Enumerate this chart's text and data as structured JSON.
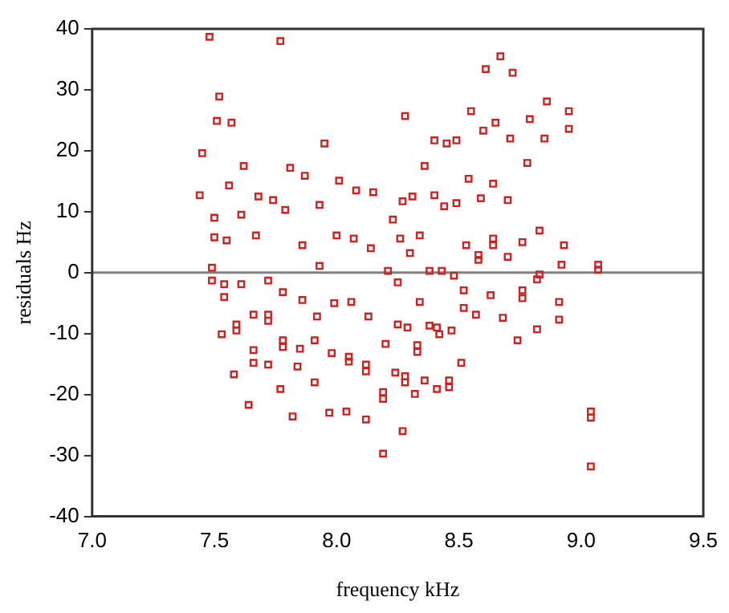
{
  "chart_data": {
    "type": "scatter",
    "xlabel": "frequency kHz",
    "ylabel": "residuals Hz",
    "xlim": [
      7.0,
      9.5
    ],
    "ylim": [
      -40,
      40
    ],
    "xticks": [
      {
        "value": 7,
        "label": "7.0"
      },
      {
        "value": 7.5,
        "label": "7.5"
      },
      {
        "value": 8,
        "label": "8.0"
      },
      {
        "value": 8.5,
        "label": "8.5"
      },
      {
        "value": 9,
        "label": "9.0"
      },
      {
        "value": 9.5,
        "label": "9.5"
      }
    ],
    "yticks": [
      -40,
      -30,
      -20,
      -10,
      0,
      10,
      20,
      30,
      40
    ],
    "grid": false,
    "legend": false,
    "marker": "square",
    "ref_lines": [
      {
        "axis": "y",
        "value": 0,
        "color": "#808080"
      }
    ],
    "series": [
      {
        "color": "#cc2222",
        "x": [
          7.48,
          7.77,
          7.52,
          7.51,
          7.57,
          7.45,
          7.62,
          7.81,
          7.56,
          7.44,
          7.68,
          7.74,
          7.79,
          7.5,
          7.61,
          7.67,
          7.5,
          7.55,
          7.49,
          7.49,
          7.54,
          7.61,
          7.72,
          7.78,
          7.54,
          7.66,
          7.72,
          7.72,
          7.59,
          7.59,
          7.53,
          7.78,
          7.78,
          7.66,
          7.66,
          7.72,
          7.58,
          7.77,
          7.64,
          7.82,
          8.61,
          8.28,
          8.55,
          8.6,
          8.65,
          7.95,
          8.4,
          8.45,
          8.49,
          7.87,
          8.36,
          8.01,
          8.08,
          8.15,
          8.54,
          8.27,
          8.31,
          8.4,
          8.44,
          8.49,
          8.59,
          8.64,
          7.93,
          8.23,
          7.86,
          8.0,
          8.07,
          8.14,
          8.26,
          8.34,
          8.3,
          8.53,
          8.58,
          8.58,
          8.64,
          8.64,
          7.93,
          8.21,
          8.38,
          8.43,
          8.48,
          8.25,
          7.86,
          7.99,
          8.06,
          8.13,
          7.92,
          8.34,
          8.52,
          8.52,
          8.57,
          8.63,
          8.25,
          8.29,
          8.38,
          8.41,
          8.42,
          8.47,
          8.2,
          8.33,
          8.33,
          7.91,
          7.85,
          7.98,
          8.05,
          8.05,
          8.12,
          8.12,
          7.84,
          8.51,
          8.24,
          8.28,
          8.28,
          8.36,
          8.41,
          8.46,
          8.46,
          7.91,
          8.19,
          8.19,
          8.32,
          7.97,
          8.04,
          8.12,
          8.27,
          8.19,
          8.67,
          8.72,
          8.86,
          8.95,
          8.95,
          8.79,
          8.71,
          8.85,
          8.78,
          8.7,
          8.83,
          8.76,
          8.93,
          8.7,
          8.92,
          9.07,
          9.07,
          8.83,
          8.82,
          8.76,
          8.76,
          8.91,
          8.68,
          8.91,
          8.82,
          8.74,
          9.04,
          9.04,
          9.04
        ],
        "values": [
          38.7,
          38,
          28.9,
          24.9,
          24.6,
          19.6,
          17.5,
          17.2,
          14.3,
          12.7,
          12.5,
          11.9,
          10.3,
          9,
          9.5,
          6.1,
          5.8,
          5.3,
          0.8,
          -1.3,
          -1.9,
          -1.9,
          -1.3,
          -3.2,
          -4,
          -6.9,
          -6.9,
          -7.9,
          -8.5,
          -9.5,
          -10.1,
          -11.1,
          -12.2,
          -12.7,
          -14.8,
          -15.1,
          -16.7,
          -19.1,
          -21.7,
          -23.6,
          33.4,
          25.7,
          26.5,
          23.3,
          24.6,
          21.2,
          21.7,
          21.2,
          21.7,
          15.9,
          17.5,
          15.1,
          13.5,
          13.2,
          15.4,
          11.7,
          12.5,
          12.7,
          10.9,
          11.4,
          12.2,
          14.6,
          11.1,
          8.7,
          4.5,
          6.1,
          5.6,
          4,
          5.6,
          6.1,
          3.2,
          4.5,
          2.9,
          2.1,
          5.6,
          4.5,
          1.1,
          0.3,
          0.3,
          0.3,
          -0.5,
          -1.6,
          -4.5,
          -5,
          -4.8,
          -7.2,
          -7.2,
          -4.8,
          -2.9,
          -5.8,
          -6.9,
          -3.7,
          -8.5,
          -9,
          -8.7,
          -9,
          -10.1,
          -9.5,
          -11.7,
          -11.9,
          -13,
          -11.1,
          -12.5,
          -13.2,
          -13.8,
          -14.6,
          -15.1,
          -16.2,
          -15.4,
          -14.8,
          -16.4,
          -17,
          -18,
          -17.7,
          -19.1,
          -17.7,
          -18.8,
          -18,
          -19.6,
          -20.7,
          -19.9,
          -23,
          -22.8,
          -24.1,
          -26,
          -29.7,
          35.5,
          32.8,
          28.1,
          26.5,
          23.6,
          25.2,
          22,
          22,
          18,
          11.9,
          6.9,
          5,
          4.5,
          2.6,
          1.3,
          1.3,
          0.5,
          -0.3,
          -1.1,
          -2.9,
          -4.2,
          -4.8,
          -7.4,
          -7.7,
          -9.3,
          -11.1,
          -22.8,
          -23.8,
          -31.8
        ]
      }
    ]
  }
}
